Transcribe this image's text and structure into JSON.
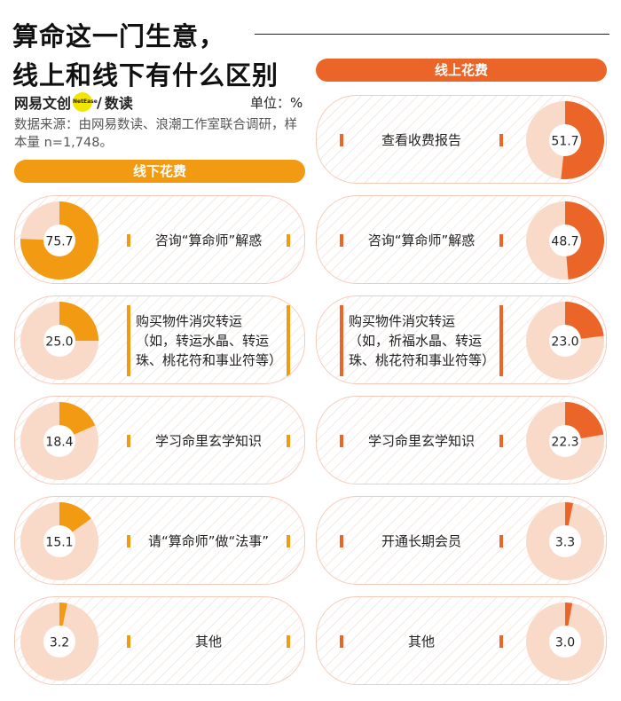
{
  "header": {
    "title_line1": "算命这一门生意，",
    "title_line2": "线上和线下有什么区别",
    "brand_left": "网易文创",
    "brand_logo": "NetEase",
    "brand_right": "数读",
    "unit": "单位：%",
    "source": "数据来源：由网易数读、浪潮工作室联合调研，样本量 n=1,748。"
  },
  "colors": {
    "offline": "#f29a12",
    "online": "#eb6528",
    "track": "#f9d9c7"
  },
  "chart_data": [
    {
      "type": "pie",
      "title": "线下花费",
      "categories": [
        "咨询“算命师”解惑",
        "购买物件消灾转运（如，转运水晶、转运珠、桃花符和事业符等）",
        "学习命里玄学知识",
        "请“算命师”做“法事”",
        "其他"
      ],
      "values": [
        75.7,
        25.0,
        18.4,
        15.1,
        3.2
      ],
      "unit": "%"
    },
    {
      "type": "pie",
      "title": "线上花费",
      "categories": [
        "查看收费报告",
        "咨询“算命师”解惑",
        "购买物件消灾转运（如，祈福水晶、转运珠、桃花符和事业符等）",
        "学习命里玄学知识",
        "开通长期会员",
        "其他"
      ],
      "values": [
        51.7,
        48.7,
        23.0,
        22.3,
        3.3,
        3.0
      ],
      "unit": "%"
    }
  ],
  "offline": {
    "label": "线下花费",
    "items": [
      {
        "label": "咨询“算命师”解惑",
        "value": "75.7",
        "pct": 75.7
      },
      {
        "label": "购买物件消灾转运（如，转运水晶、转运珠、桃花符和事业符等）",
        "value": "25.0",
        "pct": 25.0
      },
      {
        "label": "学习命里玄学知识",
        "value": "18.4",
        "pct": 18.4
      },
      {
        "label": "请“算命师”做“法事”",
        "value": "15.1",
        "pct": 15.1
      },
      {
        "label": "其他",
        "value": "3.2",
        "pct": 3.2
      }
    ]
  },
  "online": {
    "label": "线上花费",
    "items": [
      {
        "label": "查看收费报告",
        "value": "51.7",
        "pct": 51.7
      },
      {
        "label": "咨询“算命师”解惑",
        "value": "48.7",
        "pct": 48.7
      },
      {
        "label": "购买物件消灾转运（如，祈福水晶、转运珠、桃花符和事业符等）",
        "value": "23.0",
        "pct": 23.0
      },
      {
        "label": "学习命里玄学知识",
        "value": "22.3",
        "pct": 22.3
      },
      {
        "label": "开通长期会员",
        "value": "3.3",
        "pct": 3.3
      },
      {
        "label": "其他",
        "value": "3.0",
        "pct": 3.0
      }
    ]
  }
}
